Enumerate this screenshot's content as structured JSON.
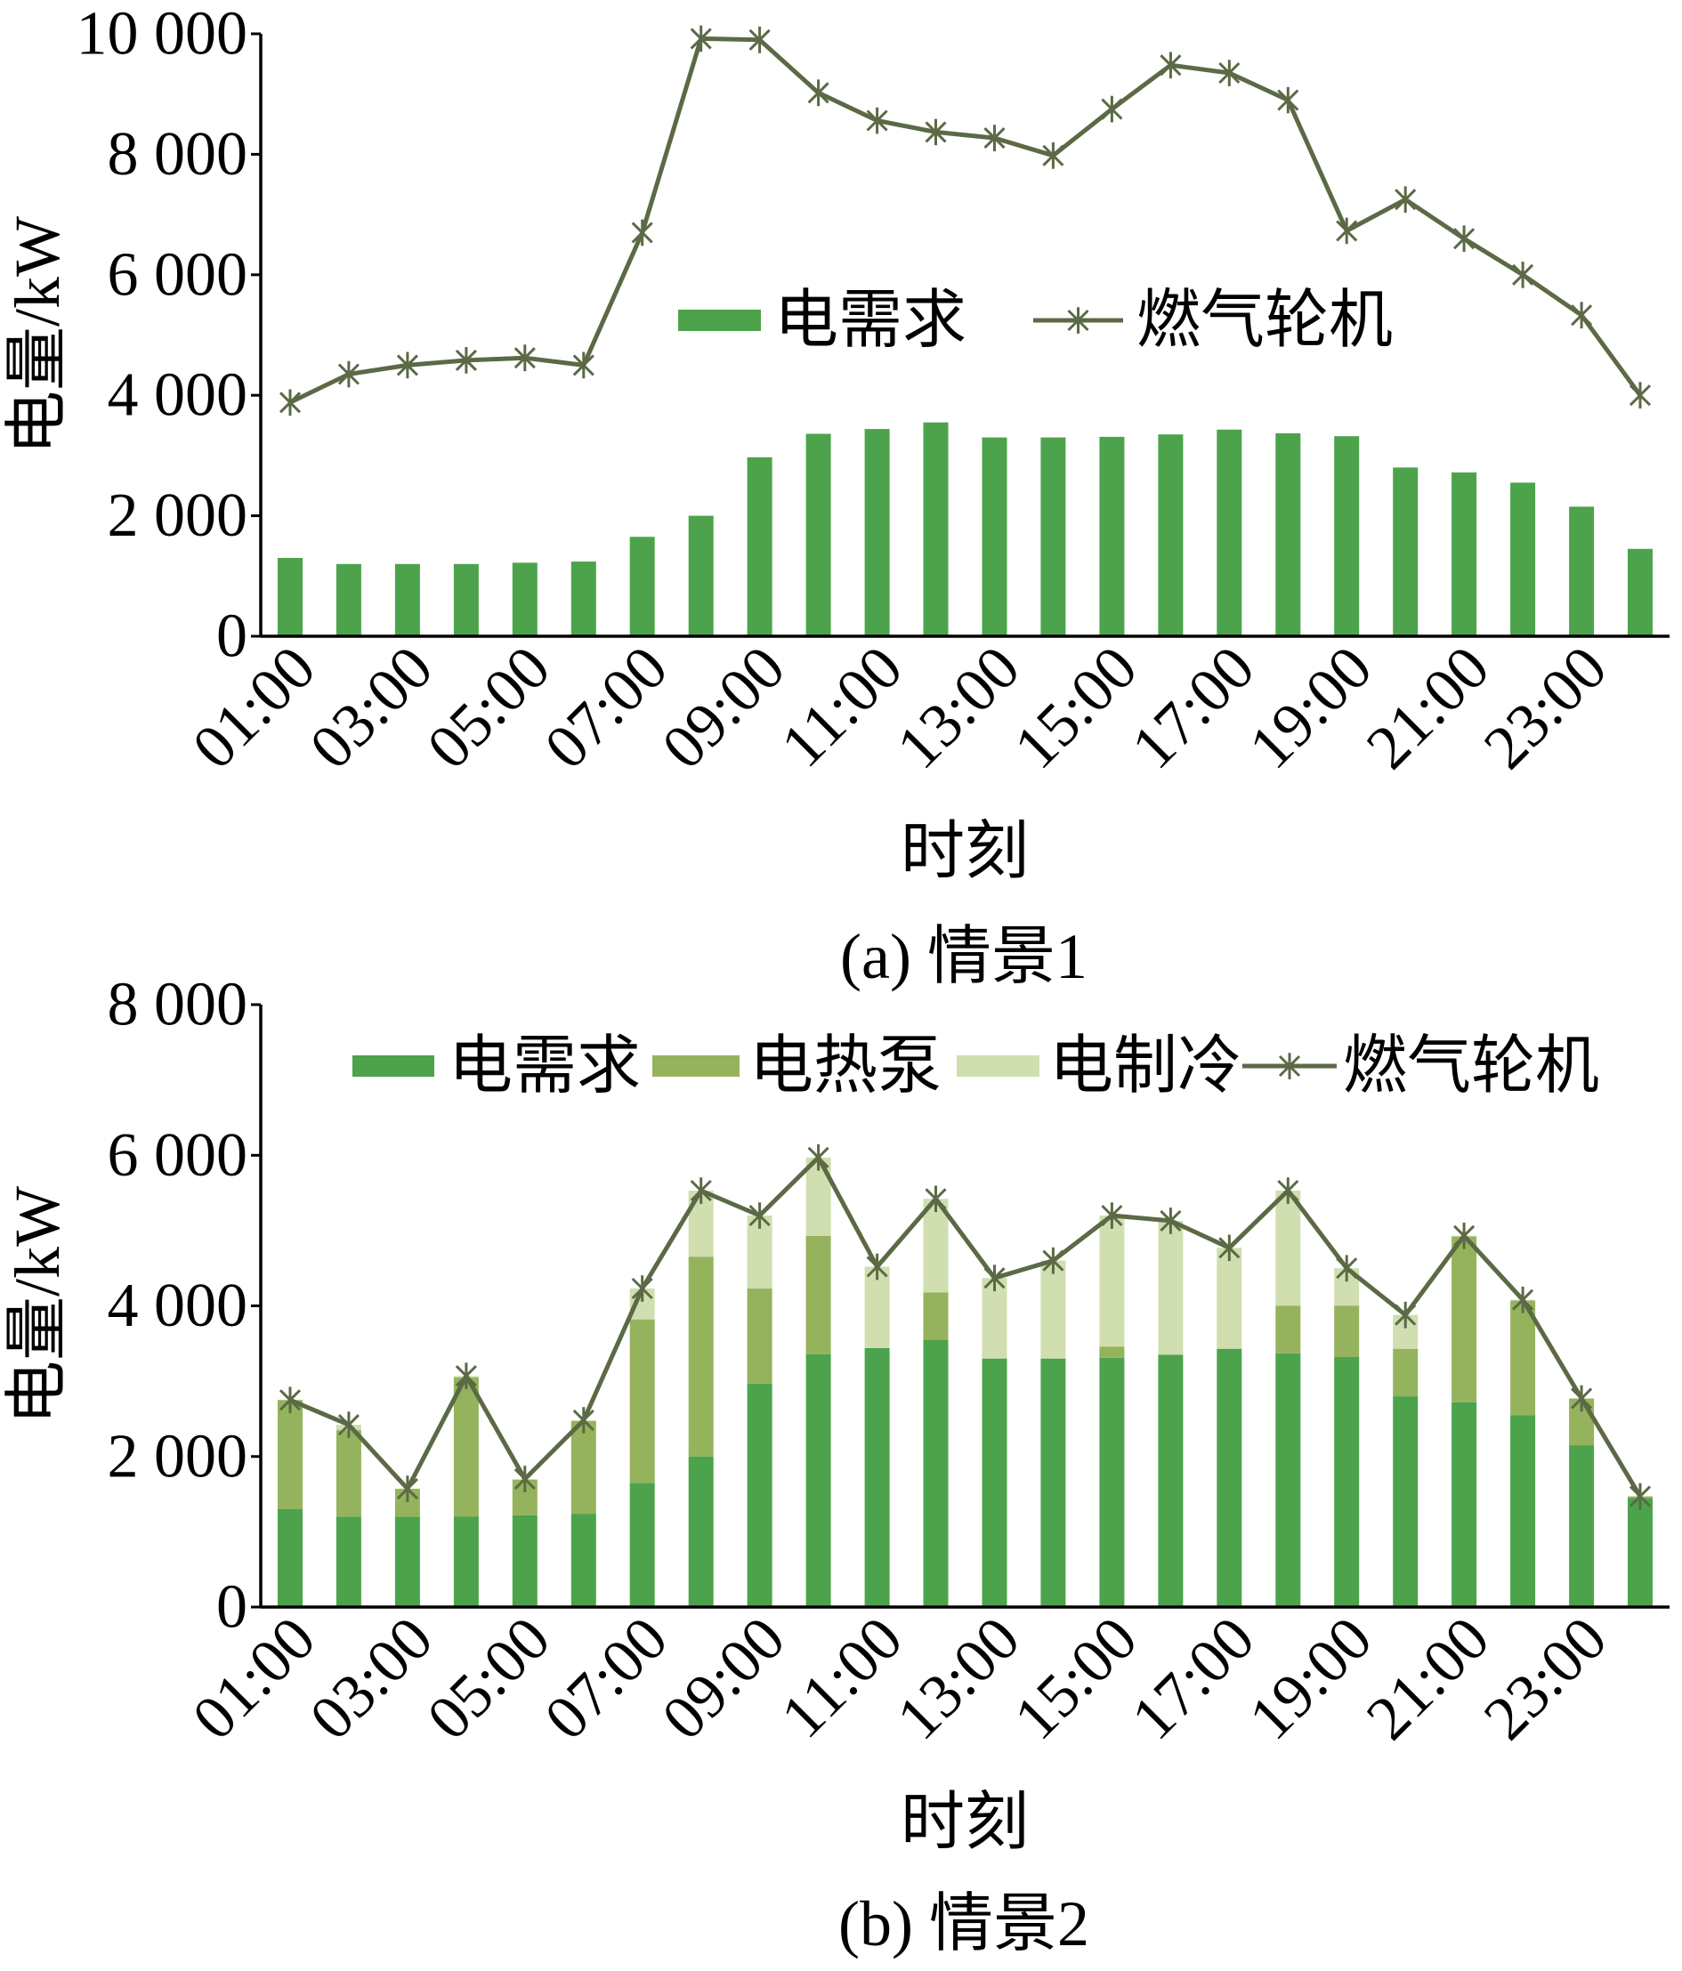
{
  "chart_data": [
    {
      "type": "bar",
      "stacked": false,
      "caption": "(a) 情景1",
      "xlabel": "时刻",
      "ylabel": "电量/kW",
      "x_tick_labels": [
        "01:00",
        "03:00",
        "05:00",
        "07:00",
        "09:00",
        "11:00",
        "13:00",
        "15:00",
        "17:00",
        "19:00",
        "21:00",
        "23:00"
      ],
      "y_ticks": [
        0,
        2000,
        4000,
        6000,
        8000,
        10000
      ],
      "y_tick_labels": [
        "0",
        "2 000",
        "4 000",
        "6 000",
        "8 000",
        "10 000"
      ],
      "ylim": [
        0,
        10000
      ],
      "grid": false,
      "legend": "center",
      "series": [
        {
          "name": "电需求",
          "type": "bar",
          "color": "#4CA34B",
          "values": [
            1300,
            1200,
            1200,
            1200,
            1220,
            1240,
            1650,
            2000,
            2970,
            3360,
            3440,
            3550,
            3300,
            3300,
            3310,
            3350,
            3430,
            3370,
            3320,
            2800,
            2720,
            2550,
            2150,
            1450
          ]
        },
        {
          "name": "燃气轮机",
          "type": "line",
          "marker": "star",
          "color": "#5B6A45",
          "values": [
            3880,
            4350,
            4500,
            4580,
            4620,
            4500,
            6700,
            9920,
            9900,
            9020,
            8560,
            8370,
            8270,
            7980,
            8750,
            9480,
            9350,
            8900,
            6730,
            7250,
            6600,
            6000,
            5330,
            4000
          ]
        }
      ]
    },
    {
      "type": "bar",
      "stacked": true,
      "caption": "(b) 情景2",
      "xlabel": "时刻",
      "ylabel": "电量/kW",
      "x_tick_labels": [
        "01:00",
        "03:00",
        "05:00",
        "07:00",
        "09:00",
        "11:00",
        "13:00",
        "15:00",
        "17:00",
        "19:00",
        "21:00",
        "23:00"
      ],
      "y_ticks": [
        0,
        2000,
        4000,
        6000,
        8000
      ],
      "y_tick_labels": [
        "0",
        "2 000",
        "4 000",
        "6 000",
        "8 000"
      ],
      "ylim": [
        0,
        8000
      ],
      "grid": false,
      "legend": "top",
      "series": [
        {
          "name": "电需求",
          "type": "bar",
          "color": "#4CA34B",
          "values": [
            1300,
            1200,
            1200,
            1200,
            1220,
            1240,
            1650,
            2000,
            2970,
            3360,
            3440,
            3550,
            3300,
            3300,
            3310,
            3350,
            3430,
            3370,
            3320,
            2800,
            2720,
            2550,
            2150,
            1450
          ]
        },
        {
          "name": "电热泵",
          "type": "bar",
          "color": "#95B35D",
          "values": [
            1450,
            1150,
            370,
            1850,
            470,
            1230,
            2170,
            2650,
            1260,
            1570,
            0,
            630,
            0,
            0,
            150,
            0,
            0,
            630,
            680,
            630,
            2200,
            1520,
            620,
            20
          ]
        },
        {
          "name": "电制冷",
          "type": "bar",
          "color": "#D0DEB0",
          "values": [
            0,
            70,
            0,
            20,
            10,
            10,
            410,
            880,
            970,
            1040,
            1080,
            1240,
            1070,
            1300,
            1740,
            1780,
            1340,
            1530,
            500,
            450,
            10,
            10,
            0,
            0
          ]
        },
        {
          "name": "燃气轮机",
          "type": "line",
          "marker": "star",
          "color": "#5B6A45",
          "values": [
            2750,
            2420,
            1570,
            3070,
            1700,
            2480,
            4230,
            5530,
            5200,
            5970,
            4520,
            5420,
            4370,
            4600,
            5200,
            5130,
            4770,
            5530,
            4500,
            3880,
            4930,
            4080,
            2770,
            1470
          ]
        }
      ]
    }
  ]
}
